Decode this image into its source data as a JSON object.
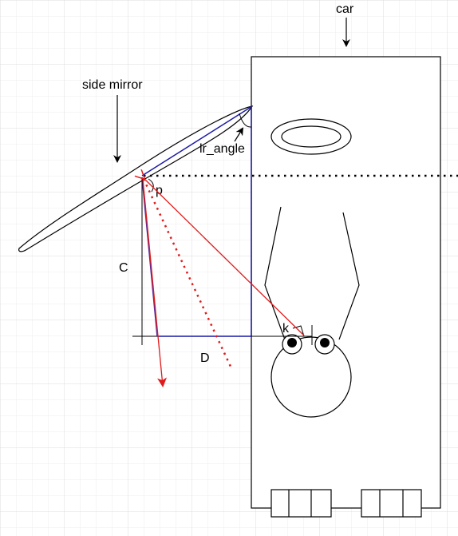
{
  "labels": {
    "car": "car",
    "side_mirror": "side mirror",
    "lr_angle": "lr_angle",
    "p": "p",
    "c": "C",
    "d": "D",
    "k": "k"
  },
  "colors": {
    "grid": "#e6e6e6",
    "line": "#000000",
    "blue": "#1a1aa6",
    "red": "#e01b1b",
    "purple": "#5a2a9c",
    "background": "#ffffff"
  }
}
